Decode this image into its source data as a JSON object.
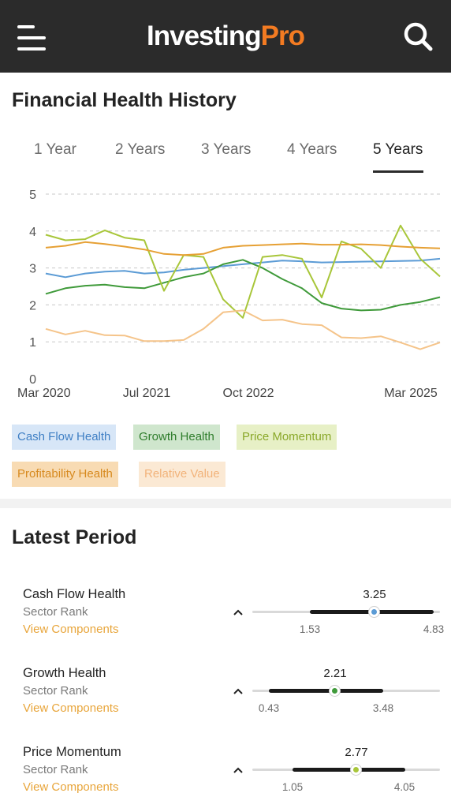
{
  "app": {
    "brand_primary": "Investing",
    "brand_accent": "Pro",
    "menu_icon": "hamburger-icon",
    "search_icon": "search-icon"
  },
  "financial_health": {
    "title": "Financial Health History",
    "tabs": [
      {
        "label": "1 Year",
        "active": false
      },
      {
        "label": "2 Years",
        "active": false
      },
      {
        "label": "3 Years",
        "active": false
      },
      {
        "label": "4 Years",
        "active": false
      },
      {
        "label": "5 Years",
        "active": true
      }
    ]
  },
  "chart_data": {
    "type": "line",
    "x_ticks": [
      "Mar 2020",
      "Jul 2021",
      "Oct 2022",
      "Mar 2025"
    ],
    "x_start": "Mar 2020",
    "x_end": "Mar 2025",
    "ylim": [
      0,
      5
    ],
    "y_ticks": [
      "0",
      "1",
      "2",
      "3",
      "4",
      "5"
    ],
    "grid": true,
    "legend_placement": "bottom",
    "series": [
      {
        "name": "Cash Flow Health",
        "color": "#5b9bd5",
        "values": [
          2.85,
          2.75,
          2.85,
          2.9,
          2.92,
          2.85,
          2.88,
          2.95,
          3.0,
          3.05,
          3.1,
          3.15,
          3.2,
          3.18,
          3.15,
          3.16,
          3.17,
          3.18,
          3.19,
          3.2,
          3.25
        ]
      },
      {
        "name": "Growth Health",
        "color": "#3f9a3a",
        "values": [
          2.3,
          2.45,
          2.52,
          2.55,
          2.48,
          2.45,
          2.6,
          2.75,
          2.85,
          3.1,
          3.22,
          3.0,
          2.7,
          2.45,
          2.05,
          1.9,
          1.85,
          1.87,
          2.0,
          2.08,
          2.21
        ]
      },
      {
        "name": "Price Momentum",
        "color": "#a8c63a",
        "values": [
          3.9,
          3.75,
          3.78,
          4.02,
          3.82,
          3.75,
          2.38,
          3.35,
          3.3,
          2.15,
          1.65,
          3.3,
          3.35,
          3.25,
          2.2,
          3.72,
          3.52,
          3.0,
          4.15,
          3.25,
          2.77
        ]
      },
      {
        "name": "Profitability Health",
        "color": "#e6a034",
        "values": [
          3.55,
          3.6,
          3.7,
          3.65,
          3.58,
          3.5,
          3.38,
          3.35,
          3.38,
          3.55,
          3.6,
          3.62,
          3.64,
          3.66,
          3.63,
          3.63,
          3.64,
          3.62,
          3.58,
          3.55,
          3.53
        ]
      },
      {
        "name": "Relative Value",
        "color": "#f5c48a",
        "values": [
          1.35,
          1.2,
          1.3,
          1.18,
          1.17,
          1.02,
          1.02,
          1.05,
          1.35,
          1.8,
          1.85,
          1.58,
          1.6,
          1.48,
          1.45,
          1.12,
          1.1,
          1.15,
          0.98,
          0.8,
          0.98
        ]
      }
    ]
  },
  "legend": [
    {
      "label": "Cash Flow Health",
      "bg": "#d7e6f7",
      "fg": "#3f7fc4"
    },
    {
      "label": "Growth Health",
      "bg": "#cfe6cd",
      "fg": "#2f7d2c"
    },
    {
      "label": "Price Momentum",
      "bg": "#e7f0c6",
      "fg": "#8aa82a"
    },
    {
      "label": "Profitability Health",
      "bg": "#f8dbb3",
      "fg": "#d78a1f"
    },
    {
      "label": "Relative Value",
      "bg": "#fbe9d4",
      "fg": "#f2b37a"
    }
  ],
  "latest_period": {
    "title": "Latest Period",
    "metrics": [
      {
        "name": "Cash Flow Health",
        "sub": "Sector Rank",
        "link": "View Components",
        "value": "3.25",
        "low": "1.53",
        "high": "4.83",
        "dot_color": "#5b9bd5"
      },
      {
        "name": "Growth Health",
        "sub": "Sector Rank",
        "link": "View Components",
        "value": "2.21",
        "low": "0.43",
        "high": "3.48",
        "dot_color": "#3f9a3a"
      },
      {
        "name": "Price Momentum",
        "sub": "Sector Rank",
        "link": "View Components",
        "value": "2.77",
        "low": "1.05",
        "high": "4.05",
        "dot_color": "#a8c63a"
      }
    ]
  }
}
